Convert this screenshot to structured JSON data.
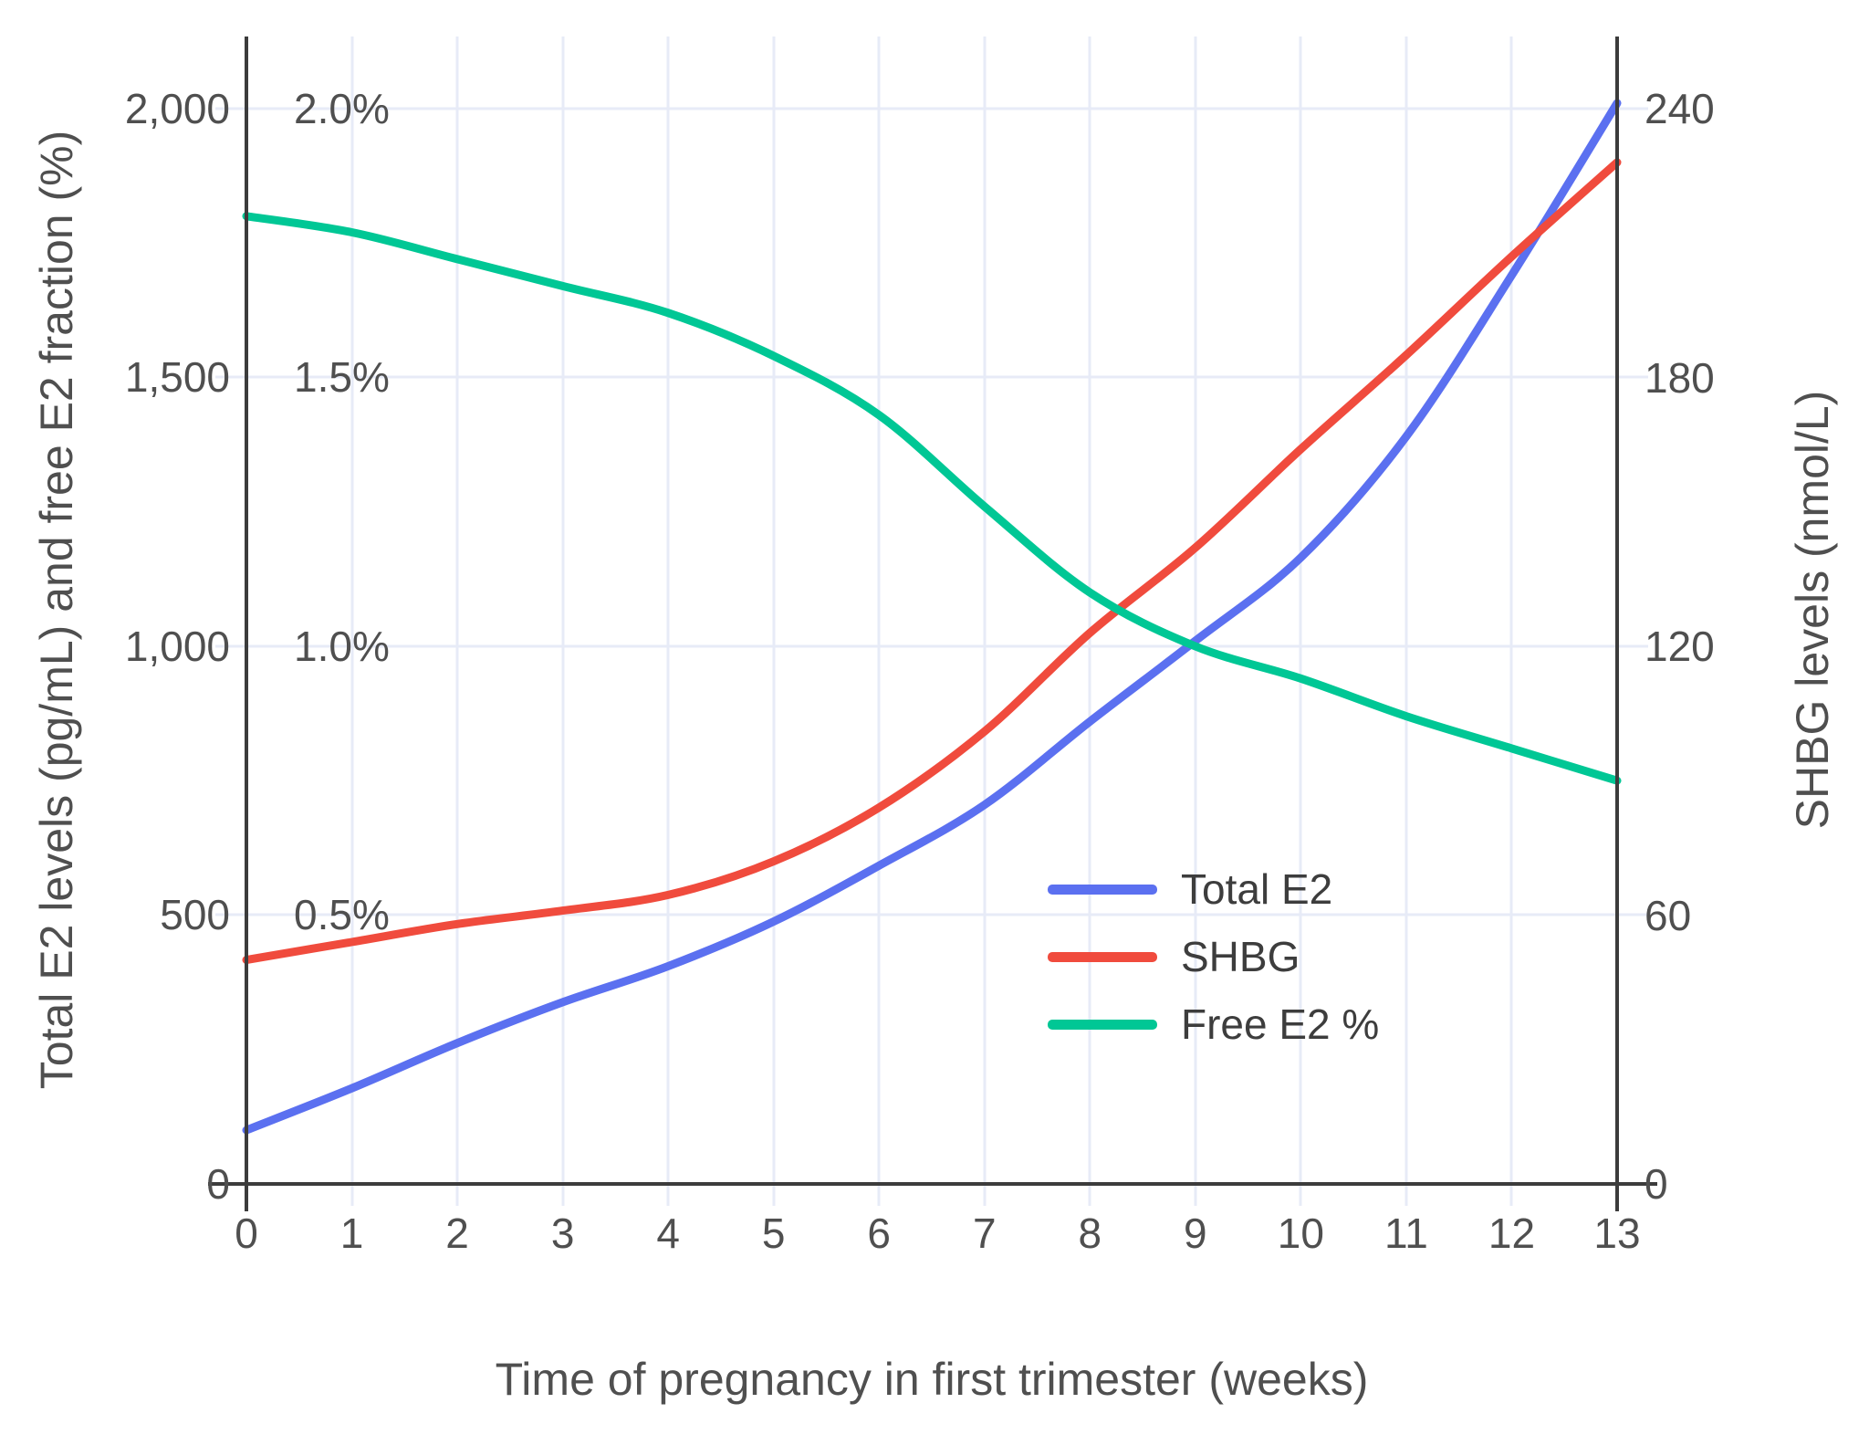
{
  "chart_data": {
    "type": "line",
    "title": "",
    "xlabel": "Time of pregnancy in first trimester (weeks)",
    "ylabel_left": "Total E2 levels (pg/mL) and free E2 fraction (%)",
    "ylabel_right": "SHBG levels (nmol/L)",
    "x": [
      0,
      1,
      2,
      3,
      4,
      5,
      6,
      7,
      8,
      9,
      10,
      11,
      12,
      13
    ],
    "x_tick_labels": [
      "0",
      "1",
      "2",
      "3",
      "4",
      "5",
      "6",
      "7",
      "8",
      "9",
      "10",
      "11",
      "12",
      "13"
    ],
    "xlim": [
      0,
      13
    ],
    "ylim_left_pg": [
      0,
      2134
    ],
    "ylim_left_pct": [
      0,
      2.1341
    ],
    "ylim_right_nmol": [
      0,
      256.1
    ],
    "grid": true,
    "legend_position": "inside middle-right",
    "y_left_ticks": [
      {
        "value": 0,
        "label": "0"
      },
      {
        "value": 500,
        "label": "500"
      },
      {
        "value": 1000,
        "label": "1,000"
      },
      {
        "value": 1500,
        "label": "1,500"
      },
      {
        "value": 2000,
        "label": "2,000"
      }
    ],
    "y_right_ticks": [
      {
        "value": 0,
        "label": "0"
      },
      {
        "value": 60,
        "label": "60"
      },
      {
        "value": 120,
        "label": "120"
      },
      {
        "value": 180,
        "label": "180"
      },
      {
        "value": 240,
        "label": "240"
      }
    ],
    "pct_inner_labels": [
      {
        "value": 0.5,
        "label": "0.5%"
      },
      {
        "value": 1.0,
        "label": "1.0%"
      },
      {
        "value": 1.5,
        "label": "1.5%"
      },
      {
        "value": 2.0,
        "label": "2.0%"
      }
    ],
    "axis_top": {
      "pg": 2134,
      "nmol": 256.1,
      "pct": 2.1341
    },
    "series": [
      {
        "name": "Total E2",
        "unit": "pg/mL",
        "axis": "pg",
        "color": "#5b70f0",
        "values": [
          100,
          178,
          262,
          338,
          405,
          488,
          592,
          705,
          860,
          1010,
          1165,
          1390,
          1690,
          2010
        ]
      },
      {
        "name": "SHBG",
        "unit": "nmol/L",
        "axis": "nmol",
        "color": "#f04b3d",
        "values": [
          50,
          54,
          58,
          61,
          64.5,
          72,
          84,
          101,
          123,
          142,
          164,
          185,
          207,
          228
        ]
      },
      {
        "name": "Free E2 %",
        "unit": "%",
        "axis": "pct",
        "color": "#00c795",
        "values": [
          1.8,
          1.77,
          1.72,
          1.67,
          1.62,
          1.54,
          1.43,
          1.26,
          1.1,
          1.0,
          0.94,
          0.87,
          0.81,
          0.75
        ]
      }
    ],
    "colors": {
      "grid": "#e7ebf7",
      "axis": "#3c3c3c",
      "tick_text": "#4f4f4f",
      "title_text": "#4f4f4f",
      "legend_text": "#3d3d3d",
      "background": "#ffffff"
    }
  }
}
